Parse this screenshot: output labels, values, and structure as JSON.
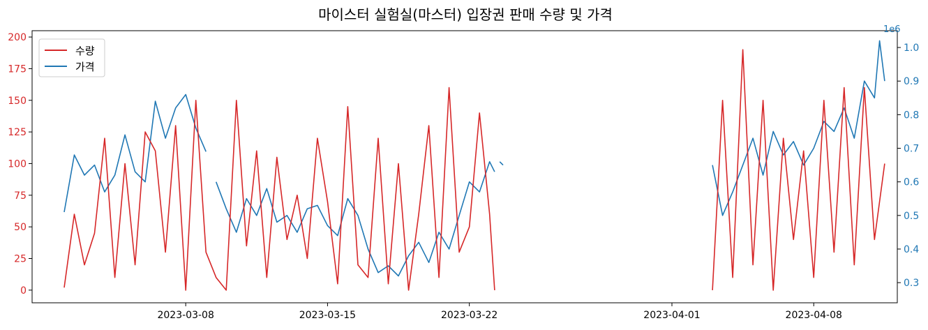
{
  "chart_data": {
    "type": "line",
    "title": "마이스터 실험실(마스터) 입장권 판매 수량 및 가격",
    "xlabel": "",
    "ylabel": "",
    "y2_label": "",
    "y2_offset_text": "1e6",
    "x_ticks": [
      "2023-03-08",
      "2023-03-15",
      "2023-03-22",
      "2023-04-01",
      "2023-04-08"
    ],
    "y_ticks": [
      0,
      25,
      50,
      75,
      100,
      125,
      150,
      175,
      200
    ],
    "y2_ticks": [
      "0.3",
      "0.4",
      "0.5",
      "0.6",
      "0.7",
      "0.8",
      "0.9",
      "1.0"
    ],
    "ylim": [
      -10,
      205
    ],
    "y2lim": [
      0.24,
      1.05
    ],
    "xlim": [
      "2023-02-28T10:00",
      "2023-04-12T03:00"
    ],
    "grid": false,
    "legend_position": "top-left",
    "colors": {
      "quantity": "#d62728",
      "price": "#1f77b4"
    },
    "series": [
      {
        "name": "수량",
        "axis": "left",
        "x": [
          "2023-03-02T00:00",
          "2023-03-02T12:00",
          "2023-03-03T00:00",
          "2023-03-03T12:00",
          "2023-03-04T00:00",
          "2023-03-04T12:00",
          "2023-03-05T00:00",
          "2023-03-05T12:00",
          "2023-03-06T00:00",
          "2023-03-06T12:00",
          "2023-03-07T00:00",
          "2023-03-07T12:00",
          "2023-03-08T00:00",
          "2023-03-08T12:00",
          "2023-03-09T00:00",
          "2023-03-09T12:00",
          "2023-03-10T00:00",
          "2023-03-10T12:00",
          "2023-03-11T00:00",
          "2023-03-11T12:00",
          "2023-03-12T00:00",
          "2023-03-12T12:00",
          "2023-03-13T00:00",
          "2023-03-13T12:00",
          "2023-03-14T00:00",
          "2023-03-14T12:00",
          "2023-03-15T00:00",
          "2023-03-15T12:00",
          "2023-03-16T00:00",
          "2023-03-16T12:00",
          "2023-03-17T00:00",
          "2023-03-17T12:00",
          "2023-03-18T00:00",
          "2023-03-18T12:00",
          "2023-03-19T00:00",
          "2023-03-19T12:00",
          "2023-03-20T00:00",
          "2023-03-20T12:00",
          "2023-03-21T00:00",
          "2023-03-21T12:00",
          "2023-03-22T00:00",
          "2023-03-22T12:00",
          "2023-03-23T00:00",
          "2023-03-23T06:00",
          null,
          "2023-04-03T00:00",
          "2023-04-03T12:00",
          "2023-04-04T00:00",
          "2023-04-04T12:00",
          "2023-04-05T00:00",
          "2023-04-05T12:00",
          "2023-04-06T00:00",
          "2023-04-06T12:00",
          "2023-04-07T00:00",
          "2023-04-07T12:00",
          "2023-04-08T00:00",
          "2023-04-08T12:00",
          "2023-04-09T00:00",
          "2023-04-09T12:00",
          "2023-04-10T00:00",
          "2023-04-10T12:00",
          "2023-04-11T00:00",
          "2023-04-11T12:00"
        ],
        "values": [
          2,
          60,
          20,
          45,
          120,
          10,
          100,
          20,
          125,
          110,
          30,
          130,
          0,
          150,
          30,
          10,
          0,
          150,
          35,
          110,
          10,
          105,
          40,
          75,
          25,
          120,
          70,
          5,
          145,
          20,
          10,
          120,
          5,
          100,
          0,
          60,
          130,
          10,
          160,
          30,
          50,
          140,
          60,
          0,
          null,
          0,
          150,
          10,
          190,
          20,
          150,
          0,
          120,
          40,
          110,
          10,
          150,
          30,
          160,
          20,
          160,
          40,
          100
        ]
      },
      {
        "name": "가격",
        "axis": "right",
        "x": [
          "2023-03-02T00:00",
          "2023-03-02T12:00",
          "2023-03-03T00:00",
          "2023-03-03T12:00",
          "2023-03-04T00:00",
          "2023-03-04T12:00",
          "2023-03-05T00:00",
          "2023-03-05T12:00",
          "2023-03-06T00:00",
          "2023-03-06T12:00",
          "2023-03-07T00:00",
          "2023-03-07T12:00",
          "2023-03-08T00:00",
          "2023-03-08T12:00",
          "2023-03-09T00:00",
          null,
          "2023-03-09T12:00",
          "2023-03-10T00:00",
          "2023-03-10T12:00",
          "2023-03-11T00:00",
          "2023-03-11T12:00",
          "2023-03-12T00:00",
          "2023-03-12T12:00",
          "2023-03-13T00:00",
          "2023-03-13T12:00",
          "2023-03-14T00:00",
          "2023-03-14T12:00",
          "2023-03-15T00:00",
          "2023-03-15T12:00",
          "2023-03-16T00:00",
          "2023-03-16T12:00",
          "2023-03-17T00:00",
          "2023-03-17T12:00",
          "2023-03-18T00:00",
          "2023-03-18T12:00",
          "2023-03-19T00:00",
          "2023-03-19T12:00",
          "2023-03-20T00:00",
          "2023-03-20T12:00",
          "2023-03-21T00:00",
          "2023-03-21T12:00",
          "2023-03-22T00:00",
          "2023-03-22T12:00",
          "2023-03-23T00:00",
          "2023-03-23T06:00",
          null,
          "2023-03-23T12:00",
          "2023-03-23T16:00",
          null,
          "2023-04-03T00:00",
          "2023-04-03T12:00",
          "2023-04-04T00:00",
          "2023-04-04T12:00",
          "2023-04-05T00:00",
          "2023-04-05T12:00",
          "2023-04-06T00:00",
          "2023-04-06T12:00",
          "2023-04-07T00:00",
          "2023-04-07T12:00",
          "2023-04-08T00:00",
          "2023-04-08T12:00",
          "2023-04-09T00:00",
          "2023-04-09T12:00",
          "2023-04-10T00:00",
          "2023-04-10T12:00",
          "2023-04-11T00:00",
          "2023-04-11T06:00",
          "2023-04-11T12:00"
        ],
        "values": [
          0.51,
          0.68,
          0.62,
          0.65,
          0.57,
          0.62,
          0.74,
          0.63,
          0.6,
          0.84,
          0.73,
          0.82,
          0.86,
          0.76,
          0.69,
          null,
          0.6,
          0.52,
          0.45,
          0.55,
          0.5,
          0.58,
          0.48,
          0.5,
          0.45,
          0.52,
          0.53,
          0.47,
          0.44,
          0.55,
          0.5,
          0.4,
          0.33,
          0.35,
          0.32,
          0.38,
          0.42,
          0.36,
          0.45,
          0.4,
          0.5,
          0.6,
          0.57,
          0.66,
          0.63,
          null,
          0.66,
          0.65,
          null,
          0.65,
          0.5,
          0.57,
          0.65,
          0.73,
          0.62,
          0.75,
          0.68,
          0.72,
          0.65,
          0.7,
          0.78,
          0.75,
          0.82,
          0.73,
          0.9,
          0.85,
          1.02,
          0.9
        ]
      }
    ]
  }
}
